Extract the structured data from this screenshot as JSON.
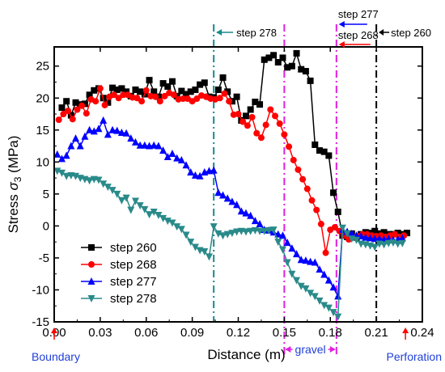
{
  "chart_data": {
    "type": "line",
    "xlabel": "Distance (m)",
    "ylabel_prefix": "Stress ",
    "ylabel_symbol": "σ",
    "ylabel_sub": "3",
    "ylabel_suffix": " (MPa)",
    "xlim": [
      0.0,
      0.24
    ],
    "ylim": [
      -15,
      28
    ],
    "xticks": [
      0.0,
      0.03,
      0.06,
      0.09,
      0.12,
      0.15,
      0.18,
      0.21,
      0.24
    ],
    "xtick_labels": [
      "0.00",
      "0.03",
      "0.06",
      "0.09",
      "0.12",
      "0.15",
      "0.18",
      "0.21",
      "0.24"
    ],
    "yticks": [
      -15,
      -10,
      -5,
      0,
      5,
      10,
      15,
      20,
      25
    ],
    "ytick_labels": [
      "-15",
      "-10",
      "-5",
      "0",
      "5",
      "10",
      "15",
      "20",
      "25"
    ],
    "legend_position": "lower-left",
    "series": [
      {
        "name": "step 260",
        "color": "#000000",
        "marker": "square",
        "x": [
          0.005,
          0.008,
          0.011,
          0.014,
          0.017,
          0.02,
          0.023,
          0.026,
          0.029,
          0.032,
          0.035,
          0.038,
          0.041,
          0.044,
          0.047,
          0.05,
          0.053,
          0.056,
          0.059,
          0.062,
          0.065,
          0.068,
          0.071,
          0.074,
          0.077,
          0.08,
          0.083,
          0.086,
          0.089,
          0.092,
          0.095,
          0.098,
          0.101,
          0.104,
          0.107,
          0.11,
          0.113,
          0.116,
          0.119,
          0.122,
          0.125,
          0.128,
          0.131,
          0.134,
          0.137,
          0.14,
          0.143,
          0.146,
          0.149,
          0.152,
          0.155,
          0.158,
          0.161,
          0.164,
          0.167,
          0.17,
          0.173,
          0.176,
          0.179,
          0.182,
          0.185,
          0.188,
          0.191,
          0.194,
          0.197,
          0.2,
          0.203,
          0.206,
          0.209,
          0.212,
          0.215,
          0.218,
          0.221,
          0.224,
          0.227,
          0.23
        ],
        "y": [
          18.5,
          19.5,
          17.3,
          19.3,
          19.0,
          19.1,
          20.5,
          21.2,
          21.5,
          20.0,
          19.3,
          21.6,
          21.3,
          21.5,
          21.0,
          20.3,
          21.3,
          21.0,
          20.6,
          22.8,
          21.0,
          20.2,
          22.3,
          21.8,
          22.6,
          20.3,
          21.1,
          20.6,
          21.0,
          21.3,
          22.1,
          22.4,
          20.2,
          20.1,
          21.3,
          23.2,
          21.0,
          19.5,
          20.2,
          16.5,
          17.2,
          18.2,
          19.4,
          19.0,
          26.0,
          26.3,
          26.7,
          25.6,
          26.3,
          24.8,
          25.0,
          27.0,
          24.5,
          24.2,
          22.7,
          12.7,
          11.8,
          11.6,
          11.0,
          5.2,
          2.2,
          -1.5,
          -1.7,
          -1.2,
          -1.8,
          -1.3,
          -1.0,
          -1.1,
          -0.8,
          -1.2,
          -1.0,
          -1.3,
          -1.3,
          -1.1,
          -1.3,
          -1.1
        ]
      },
      {
        "name": "step 268",
        "color": "#ff0000",
        "marker": "circle",
        "x": [
          0.003,
          0.006,
          0.009,
          0.012,
          0.015,
          0.018,
          0.021,
          0.024,
          0.027,
          0.03,
          0.033,
          0.036,
          0.039,
          0.042,
          0.045,
          0.048,
          0.051,
          0.054,
          0.057,
          0.06,
          0.063,
          0.066,
          0.069,
          0.072,
          0.075,
          0.078,
          0.081,
          0.084,
          0.087,
          0.09,
          0.093,
          0.096,
          0.099,
          0.102,
          0.105,
          0.108,
          0.111,
          0.114,
          0.117,
          0.12,
          0.123,
          0.126,
          0.129,
          0.132,
          0.135,
          0.138,
          0.141,
          0.144,
          0.147,
          0.15,
          0.153,
          0.156,
          0.159,
          0.162,
          0.165,
          0.168,
          0.171,
          0.174,
          0.177,
          0.18,
          0.183,
          0.186,
          0.189,
          0.192,
          0.195,
          0.198,
          0.201,
          0.204,
          0.207,
          0.21,
          0.213,
          0.216,
          0.219,
          0.222,
          0.225,
          0.228
        ],
        "y": [
          16.6,
          17.5,
          18.0,
          16.7,
          18.2,
          18.8,
          17.6,
          19.8,
          19.5,
          21.5,
          18.9,
          20.2,
          20.5,
          20.0,
          20.5,
          20.5,
          20.1,
          20.0,
          19.5,
          21.2,
          20.3,
          20.2,
          19.5,
          20.3,
          20.8,
          20.5,
          19.8,
          19.9,
          19.9,
          19.5,
          19.9,
          20.4,
          20.2,
          19.9,
          19.8,
          20.0,
          20.7,
          19.5,
          17.4,
          17.5,
          16.3,
          15.7,
          17.0,
          14.5,
          13.8,
          15.8,
          18.2,
          17.2,
          16.0,
          14.3,
          12.4,
          10.3,
          8.8,
          7.3,
          5.8,
          4.0,
          2.5,
          0.3,
          -4.2,
          -0.6,
          -0.2,
          -0.8,
          -1.5,
          -2.1,
          -1.7,
          -1.6,
          -1.3,
          -1.3,
          -1.5,
          -1.6,
          -1.5,
          -1.7,
          -1.5,
          -1.3,
          -1.7,
          -1.5
        ]
      },
      {
        "name": "step 277",
        "color": "#0000ff",
        "marker": "triangle-up",
        "x": [
          0.002,
          0.005,
          0.008,
          0.011,
          0.014,
          0.017,
          0.02,
          0.023,
          0.026,
          0.029,
          0.032,
          0.035,
          0.038,
          0.041,
          0.044,
          0.047,
          0.05,
          0.053,
          0.056,
          0.059,
          0.062,
          0.065,
          0.068,
          0.071,
          0.074,
          0.077,
          0.08,
          0.083,
          0.086,
          0.089,
          0.092,
          0.095,
          0.098,
          0.101,
          0.104,
          0.107,
          0.11,
          0.113,
          0.116,
          0.119,
          0.122,
          0.125,
          0.128,
          0.131,
          0.134,
          0.137,
          0.14,
          0.143,
          0.146,
          0.149,
          0.152,
          0.155,
          0.158,
          0.161,
          0.164,
          0.167,
          0.17,
          0.173,
          0.176,
          0.179,
          0.182,
          0.185,
          0.188,
          0.191,
          0.194,
          0.197,
          0.2,
          0.203,
          0.206,
          0.209,
          0.212,
          0.215,
          0.218,
          0.221,
          0.224,
          0.227
        ],
        "y": [
          11.2,
          10.5,
          11.0,
          12.5,
          13.7,
          12.5,
          14.0,
          15.0,
          14.8,
          15.2,
          16.5,
          14.3,
          15.0,
          14.9,
          14.6,
          14.5,
          13.7,
          13.1,
          12.6,
          12.6,
          12.5,
          12.6,
          12.5,
          11.8,
          10.8,
          11.3,
          10.6,
          10.3,
          9.5,
          8.4,
          7.9,
          7.8,
          8.4,
          8.6,
          8.7,
          5.2,
          4.8,
          4.3,
          3.8,
          3.3,
          2.3,
          2.0,
          1.6,
          0.8,
          0.3,
          -0.6,
          -0.7,
          -1.0,
          -1.3,
          -1.5,
          -2.6,
          -3.5,
          -4.4,
          -5.3,
          -5.4,
          -5.6,
          -5.7,
          -6.8,
          -7.6,
          -8.5,
          -9.6,
          -11.0,
          -0.6,
          -0.9,
          -1.2,
          -1.5,
          -1.6,
          -1.8,
          -1.9,
          -2.0,
          -2.0,
          -2.1,
          -2.0,
          -2.2,
          -2.1,
          -1.9
        ]
      },
      {
        "name": "step 278",
        "color": "#2a8a8a",
        "marker": "triangle-down",
        "x": [
          0.002,
          0.005,
          0.008,
          0.011,
          0.014,
          0.017,
          0.02,
          0.023,
          0.026,
          0.029,
          0.032,
          0.035,
          0.038,
          0.041,
          0.044,
          0.047,
          0.05,
          0.053,
          0.056,
          0.059,
          0.062,
          0.065,
          0.068,
          0.071,
          0.074,
          0.077,
          0.08,
          0.083,
          0.086,
          0.089,
          0.092,
          0.095,
          0.098,
          0.101,
          0.104,
          0.107,
          0.11,
          0.113,
          0.116,
          0.119,
          0.122,
          0.125,
          0.128,
          0.131,
          0.134,
          0.137,
          0.14,
          0.143,
          0.146,
          0.149,
          0.152,
          0.155,
          0.158,
          0.161,
          0.164,
          0.167,
          0.17,
          0.173,
          0.176,
          0.179,
          0.182,
          0.185,
          0.188,
          0.191,
          0.194,
          0.197,
          0.2,
          0.203,
          0.206,
          0.209,
          0.212,
          0.215,
          0.218,
          0.221,
          0.224,
          0.227
        ],
        "y": [
          8.6,
          8.3,
          7.8,
          7.9,
          7.8,
          7.5,
          7.3,
          7.1,
          7.3,
          7.2,
          6.6,
          6.1,
          5.6,
          5.0,
          4.0,
          4.4,
          2.5,
          3.9,
          3.2,
          2.6,
          1.8,
          2.2,
          1.7,
          1.2,
          0.8,
          0.5,
          -0.1,
          -0.5,
          -1.4,
          -2.5,
          -3.3,
          -3.8,
          -4.0,
          -4.8,
          -0.1,
          -1.2,
          -1.5,
          -1.3,
          -1.1,
          -0.9,
          -0.8,
          -0.9,
          -0.8,
          -0.7,
          -0.8,
          -0.8,
          -0.7,
          -0.6,
          -2.5,
          -3.7,
          -5.7,
          -7.5,
          -8.5,
          -9.4,
          -9.8,
          -10.5,
          -11.0,
          -11.7,
          -12.4,
          -12.8,
          -13.5,
          -14.2,
          -0.3,
          -1.2,
          -2.0,
          -2.2,
          -2.8,
          -2.9,
          -3.1,
          -3.3,
          -2.8,
          -2.9,
          -2.7,
          -2.6,
          -2.8,
          -2.7
        ]
      }
    ],
    "vlines": [
      {
        "x": 0.104,
        "color": "#1a8a8a",
        "style": "dashdot",
        "label": "step 278"
      },
      {
        "x": 0.15,
        "color": "#e020e0",
        "style": "dashdot"
      },
      {
        "x": 0.184,
        "color": "#e020e0",
        "style": "dashdot"
      },
      {
        "x": 0.21,
        "color": "#000000",
        "style": "dashdot"
      }
    ],
    "annotations": {
      "step278": "step 278",
      "step277": "step 277",
      "step268": "step 268",
      "step260": "step 260",
      "gravel": "gravel",
      "boundary": "Boundary",
      "perforation": "Perforation"
    }
  }
}
